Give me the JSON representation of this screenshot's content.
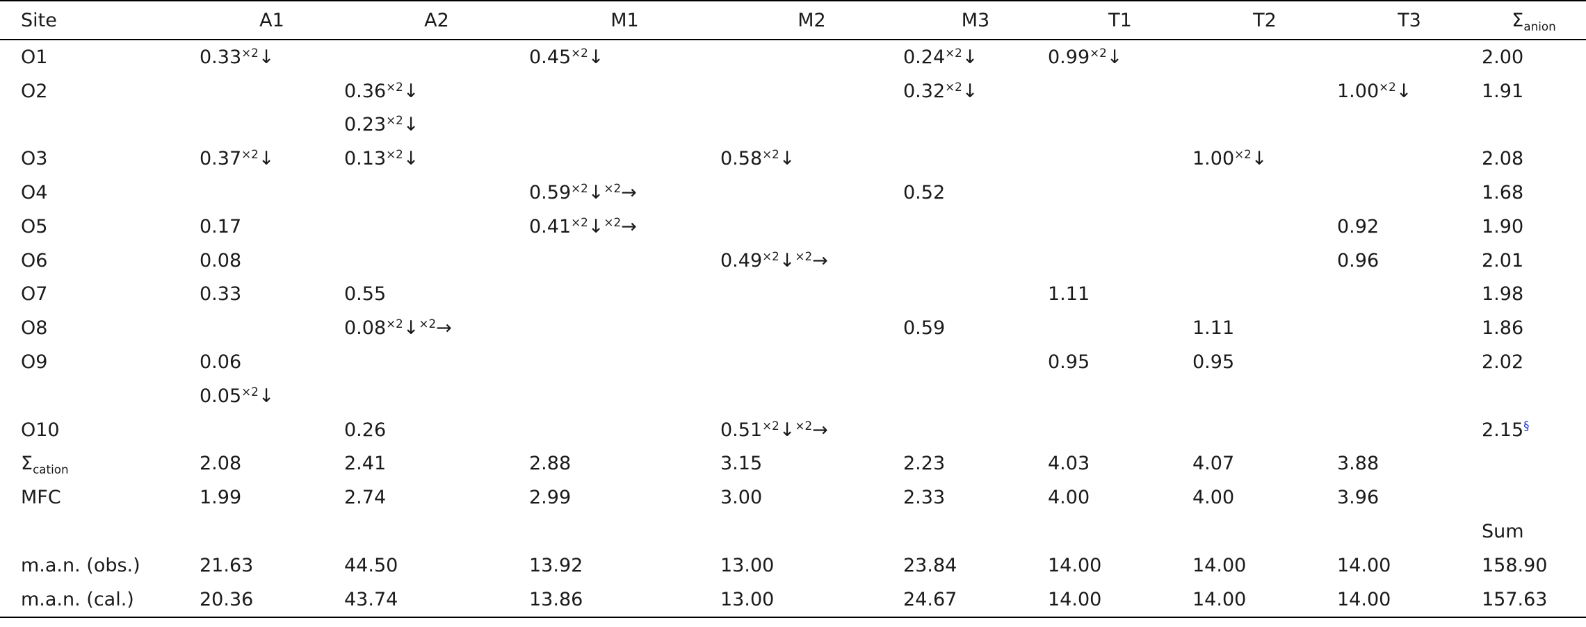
{
  "table": {
    "headers": [
      "Site",
      "A1",
      "A2",
      "M1",
      "M2",
      "M3",
      "T1",
      "T2",
      "T3",
      "Σanion"
    ],
    "rows": [
      [
        "O1",
        "0.33×2↓",
        "",
        "0.45×2↓",
        "",
        "0.24×2↓",
        "0.99×2↓",
        "",
        "",
        "2.00"
      ],
      [
        "O2",
        "",
        "0.36×2↓",
        "",
        "",
        "0.32×2↓",
        "",
        "",
        "1.00×2↓",
        "1.91"
      ],
      [
        "",
        "",
        "0.23×2↓",
        "",
        "",
        "",
        "",
        "",
        "",
        ""
      ],
      [
        "O3",
        "0.37×2↓",
        "0.13×2↓",
        "",
        "0.58×2↓",
        "",
        "",
        "1.00×2↓",
        "",
        "2.08"
      ],
      [
        "O4",
        "",
        "",
        "0.59×2↓×2→",
        "",
        "0.52",
        "",
        "",
        "",
        "1.68"
      ],
      [
        "O5",
        "0.17",
        "",
        "0.41×2↓×2→",
        "",
        "",
        "",
        "",
        "0.92",
        "1.90"
      ],
      [
        "O6",
        "0.08",
        "",
        "",
        "0.49×2↓×2→",
        "",
        "",
        "",
        "0.96",
        "2.01"
      ],
      [
        "O7",
        "0.33",
        "0.55",
        "",
        "",
        "",
        "1.11",
        "",
        "",
        "1.98"
      ],
      [
        "O8",
        "",
        "0.08×2↓×2→",
        "",
        "",
        "0.59",
        "",
        "1.11",
        "",
        "1.86"
      ],
      [
        "O9",
        "0.06",
        "",
        "",
        "",
        "",
        "0.95",
        "0.95",
        "",
        "2.02"
      ],
      [
        "",
        "0.05×2↓",
        "",
        "",
        "",
        "",
        "",
        "",
        "",
        ""
      ],
      [
        "O10",
        "",
        "0.26",
        "",
        "0.51×2↓×2→",
        "",
        "",
        "",
        "",
        "2.15§"
      ],
      [
        "Σcation",
        "2.08",
        "2.41",
        "2.88",
        "3.15",
        "2.23",
        "4.03",
        "4.07",
        "3.88",
        ""
      ],
      [
        "MFC",
        "1.99",
        "2.74",
        "2.99",
        "3.00",
        "2.33",
        "4.00",
        "4.00",
        "3.96",
        ""
      ],
      [
        "",
        "",
        "",
        "",
        "",
        "",
        "",
        "",
        "",
        "Sum"
      ],
      [
        "m.a.n. (obs.)",
        "21.63",
        "44.50",
        "13.92",
        "13.00",
        "23.84",
        "14.00",
        "14.00",
        "14.00",
        "158.90"
      ],
      [
        "m.a.n. (cal.)",
        "20.36",
        "43.74",
        "13.86",
        "13.00",
        "24.67",
        "14.00",
        "14.00",
        "14.00",
        "157.63"
      ]
    ]
  }
}
